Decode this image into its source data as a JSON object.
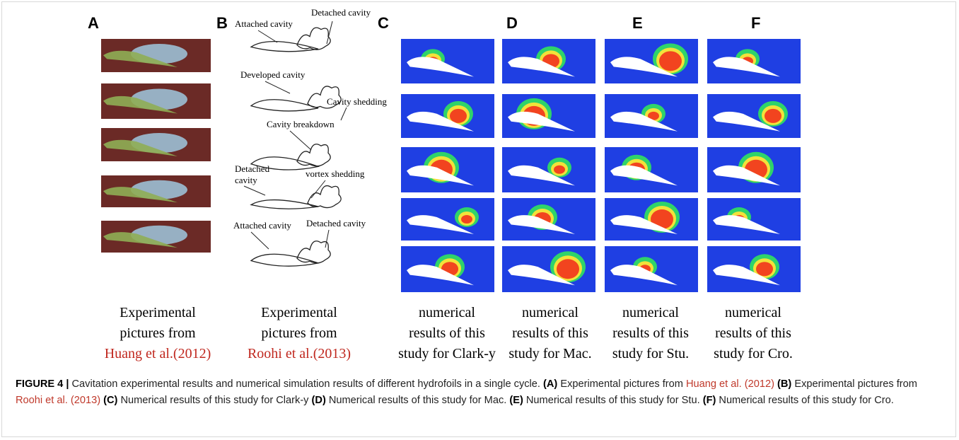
{
  "panels": [
    {
      "label": "A",
      "caption": [
        "Experimental",
        "pictures from"
      ],
      "reference": "Huang et al.(2012)"
    },
    {
      "label": "B",
      "caption": [
        "Experimental",
        "pictures from"
      ],
      "reference": "Roohi et al.(2013)"
    },
    {
      "label": "C",
      "caption": [
        "numerical",
        "results of this",
        "study for Clark-y"
      ]
    },
    {
      "label": "D",
      "caption": [
        "numerical",
        "results of this",
        "study for Mac."
      ]
    },
    {
      "label": "E",
      "caption": [
        "numerical",
        "results of this",
        "study for Stu."
      ]
    },
    {
      "label": "F",
      "caption": [
        "numerical",
        "results of this",
        "study for Cro."
      ]
    }
  ],
  "sketch_annotations": [
    "Attached cavity",
    "Detached cavity",
    "Developed cavity",
    "Cavity shedding",
    "Cavity breakdown",
    "Detached",
    "cavity",
    "vortex shedding",
    "Attached cavity",
    "Detached cavity"
  ],
  "figure_caption": {
    "label": "FIGURE 4 |",
    "text": "Cavitation experimental results and numerical simulation results of different hydrofoils in a single cycle.",
    "parts": [
      {
        "tag": "(A)",
        "text": "Experimental pictures from",
        "reference": "Huang et al. (2012)"
      },
      {
        "tag": "(B)",
        "text": "Experimental pictures from",
        "reference": "Roohi et al. (2013)"
      },
      {
        "tag": "(C)",
        "text": "Numerical results of this study for Clark-y"
      },
      {
        "tag": "(D)",
        "text": "Numerical results of this study for Mac."
      },
      {
        "tag": "(E)",
        "text": "Numerical results of this study for Stu."
      },
      {
        "tag": "(F)",
        "text": "Numerical results of this study for Cro."
      }
    ]
  }
}
